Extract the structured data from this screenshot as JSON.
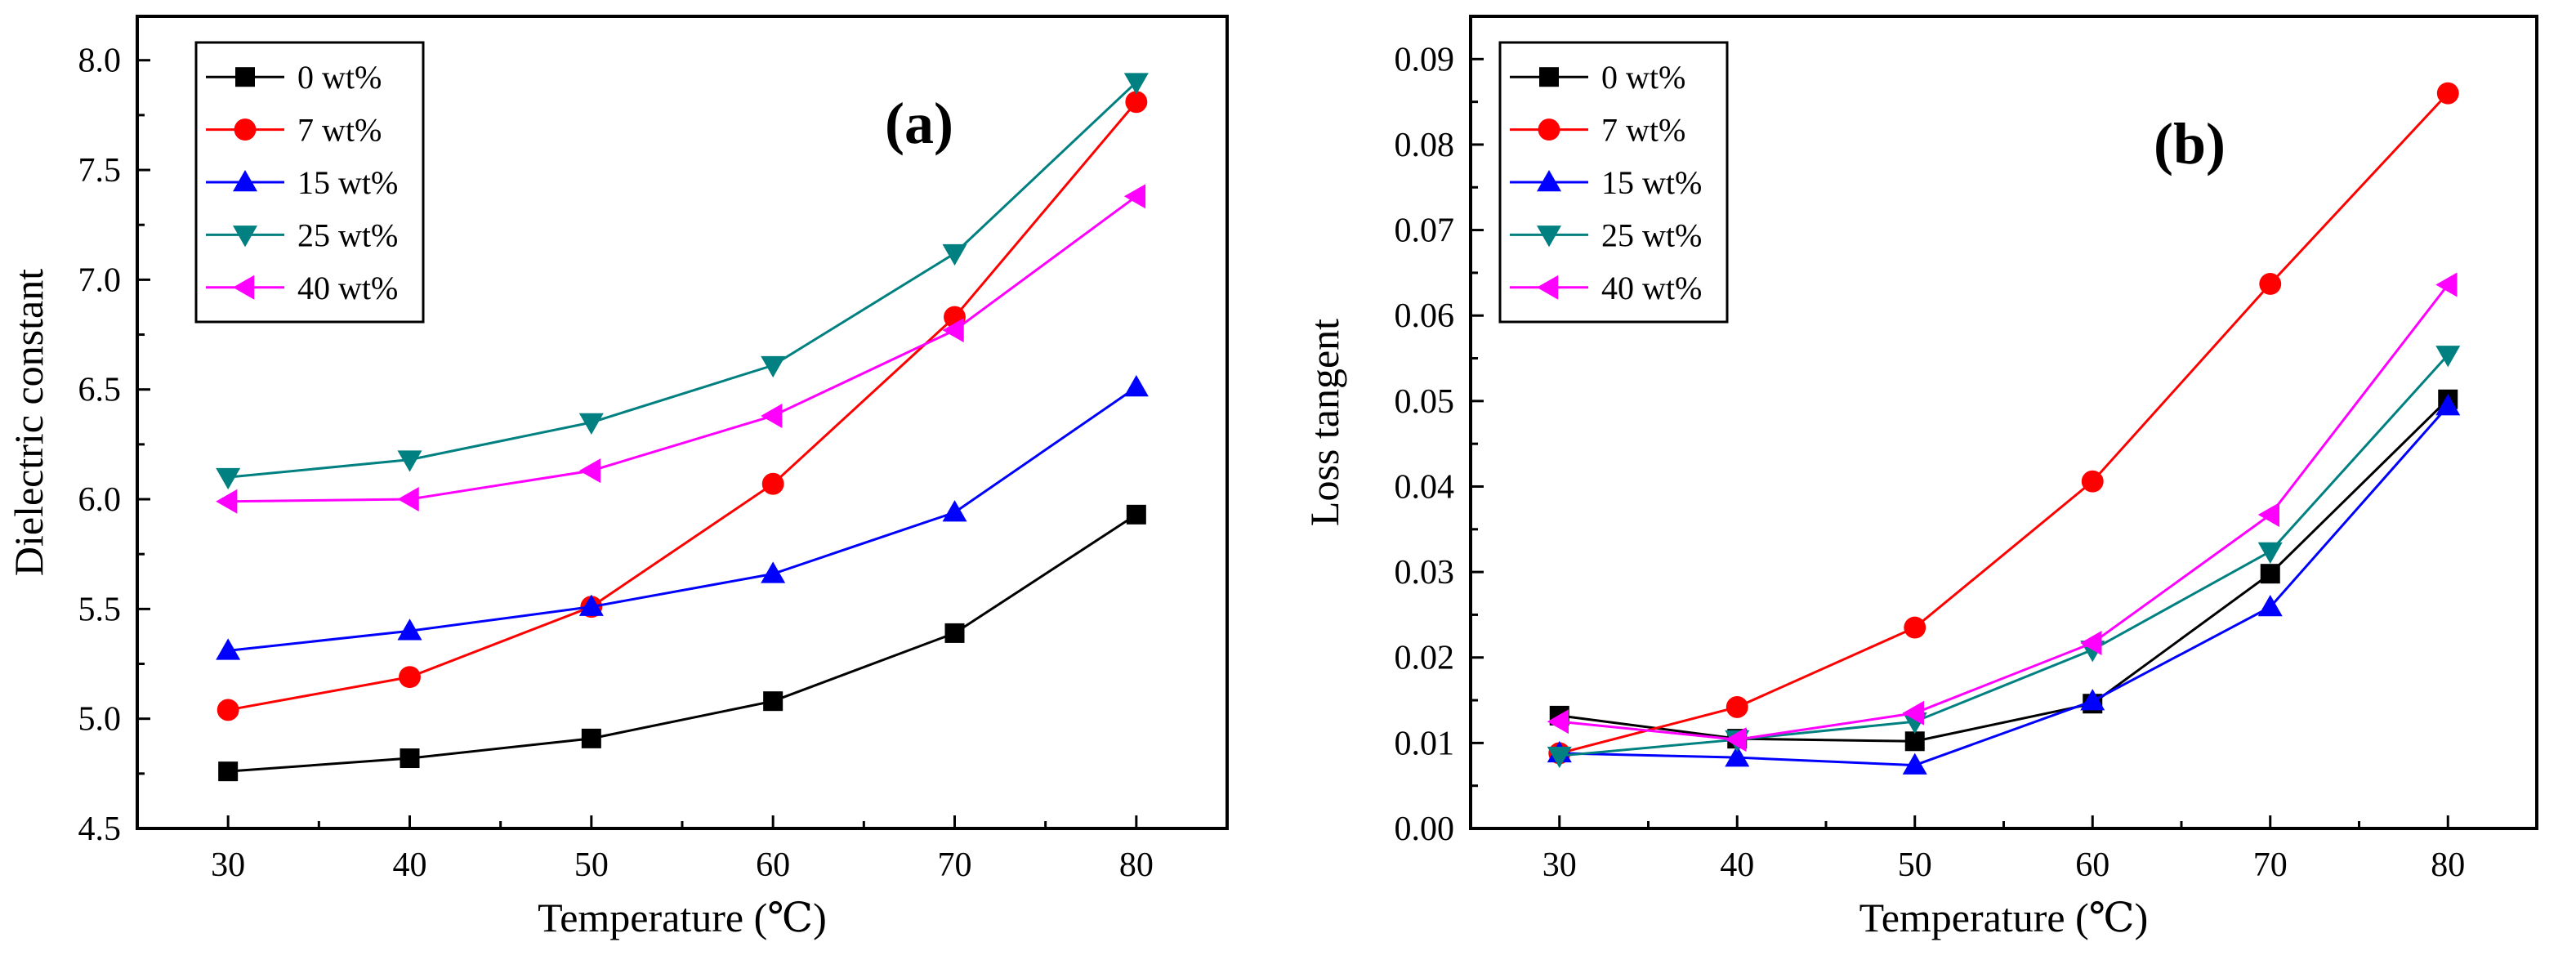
{
  "chart_data": [
    {
      "type": "line",
      "panel_label": "(a)",
      "title": "",
      "xlabel": "Temperature (℃)",
      "ylabel": "Dielectric constant",
      "xlim": [
        25,
        85
      ],
      "ylim": [
        4.5,
        8.2
      ],
      "xticks": [
        "30",
        "40",
        "50",
        "60",
        "70",
        "80"
      ],
      "yticks": [
        "4.5",
        "5.0",
        "5.5",
        "6.0",
        "6.5",
        "7.0",
        "7.5",
        "8.0"
      ],
      "x": [
        30,
        40,
        50,
        60,
        70,
        80
      ],
      "legend_position": "top-left",
      "series": [
        {
          "name": "0 wt%",
          "color": "#000000",
          "marker": "square",
          "values": [
            4.76,
            4.82,
            4.91,
            5.08,
            5.39,
            5.93
          ]
        },
        {
          "name": "7 wt%",
          "color": "#ff0000",
          "marker": "circle",
          "values": [
            5.04,
            5.19,
            5.51,
            6.07,
            6.83,
            7.81
          ]
        },
        {
          "name": "15 wt%",
          "color": "#0000ff",
          "marker": "triangle-up",
          "values": [
            5.31,
            5.4,
            5.51,
            5.66,
            5.94,
            6.51
          ]
        },
        {
          "name": "25 wt%",
          "color": "#008080",
          "marker": "triangle-down",
          "values": [
            6.1,
            6.18,
            6.35,
            6.61,
            7.12,
            7.9
          ]
        },
        {
          "name": "40 wt%",
          "color": "#ff00ff",
          "marker": "triangle-left",
          "values": [
            5.99,
            6.0,
            6.13,
            6.38,
            6.77,
            7.38
          ]
        }
      ]
    },
    {
      "type": "line",
      "panel_label": "(b)",
      "title": "",
      "xlabel": "Temperature (℃)",
      "ylabel": "Loss tangent",
      "xlim": [
        25,
        85
      ],
      "ylim": [
        0.0,
        0.095
      ],
      "xticks": [
        "30",
        "40",
        "50",
        "60",
        "70",
        "80"
      ],
      "yticks": [
        "0.00",
        "0.01",
        "0.02",
        "0.03",
        "0.04",
        "0.05",
        "0.06",
        "0.07",
        "0.08",
        "0.09"
      ],
      "x": [
        30,
        40,
        50,
        60,
        70,
        80
      ],
      "legend_position": "top-left",
      "series": [
        {
          "name": "0 wt%",
          "color": "#000000",
          "marker": "square",
          "values": [
            0.0132,
            0.0105,
            0.0102,
            0.0146,
            0.0298,
            0.0502
          ]
        },
        {
          "name": "7 wt%",
          "color": "#ff0000",
          "marker": "circle",
          "values": [
            0.0088,
            0.0142,
            0.0235,
            0.0406,
            0.0637,
            0.086
          ]
        },
        {
          "name": "15 wt%",
          "color": "#0000ff",
          "marker": "triangle-up",
          "values": [
            0.0088,
            0.0083,
            0.0074,
            0.0149,
            0.0259,
            0.0494
          ]
        },
        {
          "name": "25 wt%",
          "color": "#008080",
          "marker": "triangle-down",
          "values": [
            0.0085,
            0.0104,
            0.0125,
            0.0209,
            0.0324,
            0.0554
          ]
        },
        {
          "name": "40 wt%",
          "color": "#ff00ff",
          "marker": "triangle-left",
          "values": [
            0.0125,
            0.0104,
            0.0135,
            0.0217,
            0.0367,
            0.0636
          ]
        }
      ]
    }
  ]
}
